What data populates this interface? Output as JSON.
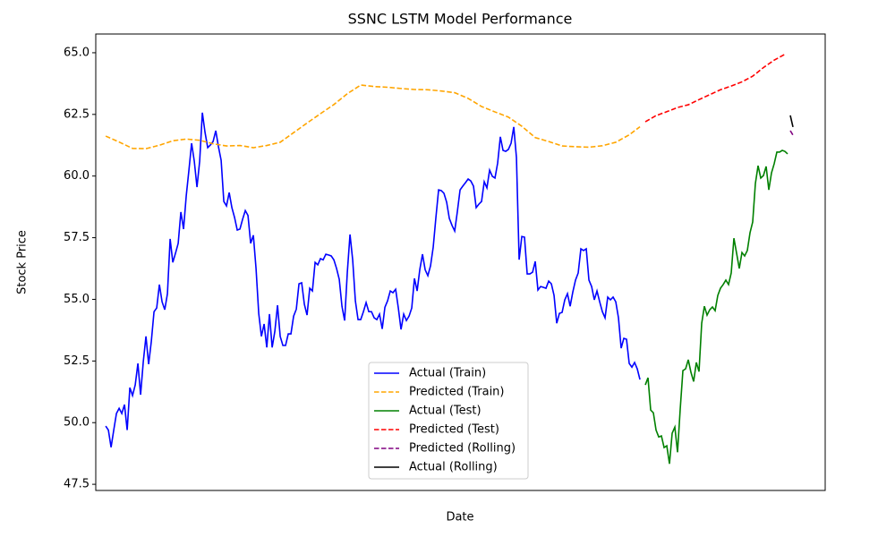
{
  "chart_data": {
    "type": "line",
    "title": "SSNC LSTM Model Performance",
    "x_label": "Date",
    "y_label": "Stock Price",
    "xlim": [
      -3.7,
      268
    ],
    "ylim": [
      47.25,
      65.76
    ],
    "yticks": [
      47.5,
      {
        "value": 50,
        "label": "50.0"
      },
      52.5,
      {
        "value": 55,
        "label": "55.0"
      },
      57.5,
      {
        "value": 60,
        "label": "60.0"
      },
      62.5,
      {
        "value": 65,
        "label": "65.0"
      }
    ],
    "legend": "lower center",
    "grid": false,
    "series": [
      {
        "name": "Actual (Train)",
        "color": "#0000ff",
        "dashed": false,
        "x": [
          0,
          1,
          2,
          3,
          4,
          5,
          6,
          7,
          8,
          9,
          10,
          11,
          12,
          13,
          14,
          15,
          16,
          17,
          18,
          19,
          20,
          21,
          22,
          23,
          24,
          25,
          26,
          27,
          28,
          29,
          30,
          31,
          32,
          33,
          34,
          35,
          36,
          37,
          38,
          39,
          40,
          41,
          42,
          43,
          44,
          45,
          46,
          47,
          48,
          49,
          50,
          51,
          52,
          53,
          54,
          55,
          56,
          57,
          58,
          59,
          60,
          61,
          62,
          63,
          64,
          65,
          66,
          67,
          68,
          69,
          70,
          71,
          72,
          73,
          74,
          75,
          76,
          77,
          78,
          79,
          80,
          81,
          82,
          83,
          84,
          85,
          86,
          87,
          88,
          89,
          90,
          91,
          92,
          93,
          94,
          95,
          96,
          97,
          98,
          99,
          100,
          101,
          102,
          103,
          104,
          105,
          106,
          107,
          108,
          109,
          110,
          111,
          112,
          113,
          114,
          115,
          116,
          117,
          118,
          119,
          120,
          121,
          122,
          123,
          124,
          125,
          126,
          127,
          128,
          129,
          130,
          131,
          132,
          133,
          134,
          135,
          136,
          137,
          138,
          139,
          140,
          141,
          142,
          143,
          144,
          145,
          146,
          147,
          148,
          149,
          150,
          151,
          152,
          153,
          154,
          155,
          156,
          157,
          158,
          159,
          160,
          161,
          162,
          163,
          164,
          165,
          166,
          167,
          168,
          169,
          170,
          171,
          172,
          173,
          174,
          175,
          176,
          177,
          178,
          179,
          180,
          181,
          182,
          183,
          184,
          185,
          186,
          187,
          188,
          189,
          190,
          191,
          192,
          193,
          194,
          195,
          196,
          197,
          198,
          199
        ],
        "values": [
          49.86,
          49.7,
          49.0,
          49.7,
          50.37,
          50.58,
          50.37,
          50.73,
          49.7,
          51.42,
          51.1,
          51.53,
          52.4,
          51.13,
          52.47,
          53.5,
          52.37,
          53.3,
          54.5,
          54.65,
          55.6,
          54.9,
          54.58,
          55.23,
          57.45,
          56.5,
          56.87,
          57.27,
          58.54,
          57.85,
          59.2,
          60.24,
          61.33,
          60.6,
          59.55,
          60.6,
          62.57,
          61.77,
          61.15,
          61.26,
          61.4,
          61.84,
          61.19,
          60.64,
          58.97,
          58.79,
          59.33,
          58.72,
          58.32,
          57.81,
          57.85,
          58.25,
          58.6,
          58.4,
          57.27,
          57.6,
          56.25,
          54.43,
          53.5,
          54.0,
          53.05,
          54.4,
          53.05,
          53.7,
          54.76,
          53.5,
          53.13,
          53.13,
          53.6,
          53.6,
          54.32,
          54.6,
          55.63,
          55.67,
          54.8,
          54.36,
          55.45,
          55.34,
          56.5,
          56.4,
          56.65,
          56.6,
          56.83,
          56.8,
          56.76,
          56.6,
          56.25,
          55.81,
          54.72,
          54.14,
          56.1,
          57.63,
          56.6,
          54.94,
          54.18,
          54.18,
          54.5,
          54.87,
          54.5,
          54.5,
          54.25,
          54.18,
          54.4,
          53.8,
          54.68,
          54.94,
          55.34,
          55.27,
          55.41,
          54.65,
          53.78,
          54.4,
          54.14,
          54.32,
          54.65,
          55.85,
          55.34,
          56.21,
          56.83,
          56.2,
          55.96,
          56.36,
          57.12,
          58.32,
          59.44,
          59.41,
          59.3,
          58.94,
          58.28,
          58.0,
          57.77,
          58.57,
          59.44,
          59.59,
          59.73,
          59.88,
          59.8,
          59.59,
          58.72,
          58.86,
          58.97,
          59.77,
          59.52,
          60.24,
          59.99,
          59.92,
          60.53,
          61.59,
          61.04,
          61.0,
          61.08,
          61.33,
          61.99,
          60.75,
          56.61,
          57.55,
          57.52,
          56.03,
          56.03,
          56.1,
          56.54,
          55.38,
          55.52,
          55.49,
          55.45,
          55.74,
          55.63,
          55.16,
          54.03,
          54.43,
          54.47,
          54.98,
          55.23,
          54.72,
          55.3,
          55.78,
          56.07,
          57.05,
          56.98,
          57.05,
          55.78,
          55.52,
          54.98,
          55.34,
          54.9,
          54.5,
          54.25,
          55.09,
          54.98,
          55.09,
          54.9,
          54.25,
          53.02,
          53.42,
          53.38,
          52.4,
          52.25,
          52.44,
          52.18,
          51.75
        ]
      },
      {
        "name": "Predicted (Train)",
        "color": "#ffa500",
        "dashed": true,
        "x": [
          0,
          5,
          10,
          15,
          20,
          25,
          30,
          35,
          40,
          45,
          50,
          55,
          60,
          65,
          70,
          75,
          80,
          85,
          90,
          95,
          100,
          105,
          110,
          115,
          120,
          125,
          130,
          135,
          140,
          145,
          150,
          155,
          160,
          165,
          170,
          175,
          180,
          185,
          190,
          195,
          199
        ],
        "values": [
          61.62,
          61.38,
          61.12,
          61.11,
          61.25,
          61.43,
          61.5,
          61.45,
          61.31,
          61.22,
          61.24,
          61.15,
          61.24,
          61.37,
          61.76,
          62.15,
          62.53,
          62.9,
          63.34,
          63.69,
          63.63,
          63.6,
          63.55,
          63.51,
          63.5,
          63.45,
          63.38,
          63.15,
          62.82,
          62.6,
          62.39,
          62.02,
          61.56,
          61.4,
          61.22,
          61.19,
          61.17,
          61.23,
          61.37,
          61.67,
          62.0
        ]
      },
      {
        "name": "Actual (Test)",
        "color": "#008000",
        "dashed": false,
        "x": [
          201,
          202,
          203,
          204,
          205,
          206,
          207,
          208,
          209,
          210,
          211,
          212,
          213,
          214,
          215,
          216,
          217,
          218,
          219,
          220,
          221,
          222,
          223,
          224,
          225,
          226,
          227,
          228,
          229,
          230,
          231,
          232,
          233,
          234,
          235,
          236,
          237,
          238,
          239,
          240,
          241,
          242,
          243,
          244,
          245,
          246,
          247,
          248,
          249,
          250,
          251,
          252,
          253,
          254
        ],
        "values": [
          51.53,
          51.82,
          50.51,
          50.4,
          49.7,
          49.42,
          49.46,
          48.99,
          49.06,
          48.33,
          49.57,
          49.82,
          48.8,
          50.55,
          52.11,
          52.18,
          52.55,
          52.04,
          51.67,
          52.44,
          52.07,
          54.03,
          54.72,
          54.36,
          54.58,
          54.69,
          54.54,
          55.16,
          55.45,
          55.6,
          55.78,
          55.6,
          56.07,
          57.48,
          56.87,
          56.25,
          56.9,
          56.76,
          56.98,
          57.7,
          58.14,
          59.7,
          60.42,
          59.92,
          60.02,
          60.39,
          59.44,
          60.13,
          60.5,
          60.97,
          60.97,
          61.04,
          61.0,
          60.9
        ]
      },
      {
        "name": "Predicted (Test)",
        "color": "#ff0000",
        "dashed": true,
        "x": [
          201,
          205,
          209,
          213,
          217,
          221,
          225,
          229,
          233,
          237,
          241,
          245,
          249,
          253
        ],
        "values": [
          62.2,
          62.45,
          62.61,
          62.78,
          62.89,
          63.1,
          63.3,
          63.5,
          63.65,
          63.82,
          64.05,
          64.4,
          64.7,
          64.94
        ]
      },
      {
        "name": "Predicted (Rolling)",
        "color": "#800080",
        "dashed": true,
        "x": [
          255,
          256
        ],
        "values": [
          61.84,
          61.66
        ]
      },
      {
        "name": "Actual (Rolling)",
        "color": "#000000",
        "dashed": false,
        "x": [
          255,
          256
        ],
        "values": [
          62.46,
          61.99
        ]
      }
    ]
  }
}
